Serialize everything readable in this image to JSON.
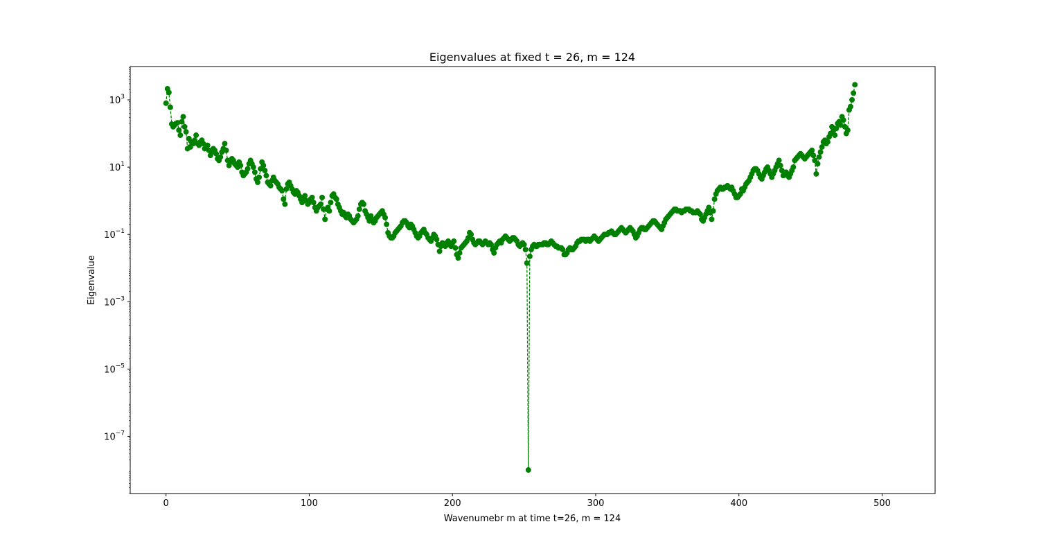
{
  "chart_data": {
    "type": "line",
    "title": "Eigenvalues at fixed t = 26, m = 124",
    "xlabel": "Wavenumebr m at time t=26, m = 124",
    "ylabel": "Eigenvalue",
    "yscale": "log",
    "xlim": [
      -25,
      537
    ],
    "ylim_log10": [
      -8.7,
      3.99
    ],
    "x_ticks": [
      0,
      100,
      200,
      300,
      400,
      500
    ],
    "y_ticks_exponent": [
      3,
      1,
      -1,
      -3,
      -5,
      -7
    ],
    "y_tick_base": "10",
    "grid": false,
    "marker": "circle",
    "linestyle": "dashed",
    "color": "#008000",
    "series": [
      {
        "x_start": 0,
        "x_step": 1,
        "log10_values": [
          2.9,
          3.33,
          3.22,
          2.78,
          2.28,
          2.2,
          2.25,
          2.3,
          2.32,
          2.1,
          1.95,
          2.35,
          2.5,
          2.2,
          2.05,
          1.55,
          1.85,
          1.6,
          1.75,
          1.7,
          1.8,
          1.95,
          1.7,
          1.65,
          1.75,
          1.8,
          1.7,
          1.55,
          1.6,
          1.65,
          1.5,
          1.35,
          1.45,
          1.55,
          1.5,
          1.4,
          1.25,
          1.2,
          1.3,
          1.45,
          1.55,
          1.7,
          1.5,
          1.2,
          1.05,
          1.15,
          1.25,
          1.2,
          1.1,
          1.05,
          1.0,
          1.15,
          1.05,
          0.85,
          0.75,
          0.8,
          0.85,
          0.95,
          1.1,
          1.2,
          1.1,
          1.0,
          0.85,
          0.65,
          0.55,
          0.7,
          0.95,
          1.15,
          1.05,
          0.9,
          0.75,
          0.55,
          0.5,
          0.45,
          0.6,
          0.7,
          0.6,
          0.55,
          0.5,
          0.4,
          0.35,
          0.3,
          0.05,
          -0.1,
          0.35,
          0.5,
          0.55,
          0.45,
          0.35,
          0.25,
          0.2,
          0.3,
          0.25,
          0.15,
          0.05,
          -0.05,
          0.1,
          0.15,
          0.0,
          -0.1,
          -0.05,
          0.05,
          0.1,
          -0.05,
          -0.2,
          -0.3,
          -0.2,
          -0.15,
          -0.1,
          0.1,
          -0.25,
          -0.55,
          -0.25,
          -0.2,
          -0.3,
          -0.05,
          0.15,
          0.2,
          0.1,
          0.05,
          -0.1,
          -0.2,
          -0.3,
          -0.4,
          -0.35,
          -0.45,
          -0.5,
          -0.4,
          -0.45,
          -0.55,
          -0.6,
          -0.65,
          -0.6,
          -0.55,
          -0.45,
          -0.25,
          -0.1,
          -0.05,
          -0.1,
          -0.3,
          -0.4,
          -0.5,
          -0.6,
          -0.45,
          -0.55,
          -0.65,
          -0.6,
          -0.5,
          -0.45,
          -0.4,
          -0.35,
          -0.3,
          -0.4,
          -0.5,
          -0.7,
          -0.95,
          -1.05,
          -1.1,
          -1.1,
          -1.05,
          -0.95,
          -0.9,
          -0.85,
          -0.8,
          -0.75,
          -0.65,
          -0.6,
          -0.6,
          -0.65,
          -0.75,
          -0.8,
          -0.7,
          -0.75,
          -0.85,
          -0.95,
          -1.05,
          -1.1,
          -1.05,
          -0.95,
          -0.9,
          -0.85,
          -0.95,
          -1.0,
          -1.1,
          -1.15,
          -1.2,
          -1.1,
          -1.0,
          -1.05,
          -1.15,
          -1.3,
          -1.5,
          -1.35,
          -1.25,
          -1.3,
          -1.35,
          -1.25,
          -1.2,
          -1.3,
          -1.35,
          -1.25,
          -1.2,
          -1.4,
          -1.6,
          -1.7,
          -1.55,
          -1.4,
          -1.35,
          -1.3,
          -1.25,
          -1.2,
          -1.1,
          -0.95,
          -1.0,
          -1.15,
          -1.25,
          -1.3,
          -1.25,
          -1.2,
          -1.2,
          -1.25,
          -1.3,
          -1.25,
          -1.2,
          -1.25,
          -1.3,
          -1.25,
          -1.3,
          -1.45,
          -1.55,
          -1.4,
          -1.3,
          -1.25,
          -1.2,
          -1.25,
          -1.15,
          -1.1,
          -1.05,
          -1.1,
          -1.15,
          -1.2,
          -1.15,
          -1.1,
          -1.1,
          -1.15,
          -1.2,
          -1.3,
          -1.35,
          -1.3,
          -1.25,
          -1.3,
          -1.45,
          -1.85,
          -8.0,
          -1.65,
          -1.45,
          -1.35,
          -1.3,
          -1.35,
          -1.35,
          -1.3,
          -1.3,
          -1.3,
          -1.3,
          -1.25,
          -1.25,
          -1.3,
          -1.3,
          -1.25,
          -1.2,
          -1.25,
          -1.3,
          -1.35,
          -1.35,
          -1.4,
          -1.4,
          -1.4,
          -1.45,
          -1.6,
          -1.6,
          -1.55,
          -1.45,
          -1.4,
          -1.45,
          -1.45,
          -1.4,
          -1.35,
          -1.25,
          -1.2,
          -1.2,
          -1.15,
          -1.15,
          -1.15,
          -1.2,
          -1.15,
          -1.15,
          -1.2,
          -1.15,
          -1.1,
          -1.05,
          -1.1,
          -1.15,
          -1.2,
          -1.15,
          -1.1,
          -1.05,
          -1.0,
          -1.0,
          -1.0,
          -0.95,
          -0.95,
          -0.9,
          -0.95,
          -1.0,
          -1.0,
          -0.95,
          -0.9,
          -0.85,
          -0.8,
          -0.85,
          -0.9,
          -0.95,
          -0.9,
          -0.85,
          -0.8,
          -0.85,
          -0.9,
          -1.0,
          -1.1,
          -1.05,
          -0.95,
          -0.85,
          -0.8,
          -0.8,
          -0.85,
          -0.85,
          -0.8,
          -0.75,
          -0.7,
          -0.65,
          -0.6,
          -0.6,
          -0.65,
          -0.7,
          -0.75,
          -0.8,
          -0.85,
          -0.75,
          -0.65,
          -0.55,
          -0.5,
          -0.45,
          -0.4,
          -0.35,
          -0.3,
          -0.25,
          -0.25,
          -0.3,
          -0.3,
          -0.3,
          -0.35,
          -0.3,
          -0.3,
          -0.25,
          -0.25,
          -0.25,
          -0.3,
          -0.3,
          -0.35,
          -0.35,
          -0.35,
          -0.3,
          -0.35,
          -0.4,
          -0.55,
          -0.6,
          -0.5,
          -0.4,
          -0.3,
          -0.2,
          -0.35,
          -0.55,
          -0.3,
          0.05,
          0.2,
          0.3,
          0.35,
          0.4,
          0.35,
          0.35,
          0.4,
          0.4,
          0.45,
          0.4,
          0.35,
          0.4,
          0.3,
          0.2,
          0.1,
          0.1,
          0.15,
          0.2,
          0.35,
          0.3,
          0.4,
          0.5,
          0.55,
          0.6,
          0.7,
          0.8,
          0.9,
          0.95,
          0.95,
          0.9,
          0.8,
          0.7,
          0.65,
          0.75,
          0.85,
          0.95,
          1.0,
          0.9,
          0.8,
          0.7,
          0.8,
          0.9,
          1.0,
          1.1,
          1.2,
          1.05,
          0.9,
          0.75,
          0.8,
          0.85,
          0.75,
          0.7,
          0.8,
          0.9,
          1.0,
          1.2,
          1.25,
          1.3,
          1.35,
          1.4,
          1.35,
          1.3,
          1.25,
          1.3,
          1.35,
          1.4,
          1.45,
          1.5,
          1.35,
          1.2,
          0.8,
          1.1,
          1.3,
          1.45,
          1.6,
          1.75,
          1.8,
          1.7,
          1.75,
          1.9,
          2.0,
          2.2,
          2.1,
          1.95,
          2.15,
          2.3,
          2.35,
          2.25,
          2.5,
          2.4,
          2.2,
          2.0,
          2.1,
          2.7,
          2.8,
          3.0,
          3.2,
          3.45
        ]
      }
    ]
  }
}
